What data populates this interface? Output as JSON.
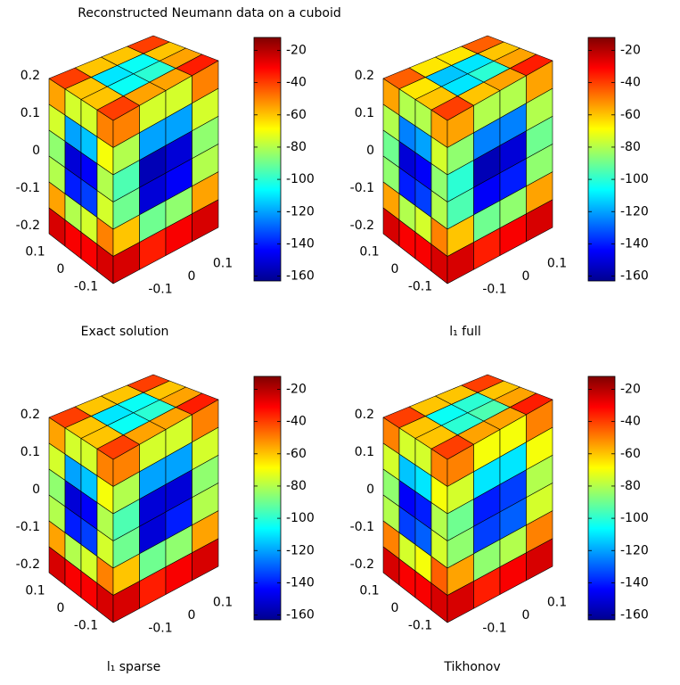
{
  "title": "Reconstructed Neumann data on a cuboid",
  "chart_data": [
    {
      "type": "surface",
      "title": "Exact solution",
      "clim": [
        -163,
        -12
      ],
      "cticks": [
        -20,
        -40,
        -60,
        -80,
        -100,
        -120,
        -140,
        -160
      ],
      "zticks": [
        0.2,
        0.1,
        0,
        -0.1,
        -0.2
      ],
      "xticks": [
        0.1,
        0,
        -0.1
      ],
      "yticks": [
        -0.1,
        0,
        0.1
      ],
      "faces": {
        "top": [
          [
            -40,
            -60,
            -60,
            -40
          ],
          [
            -60,
            -110,
            -105,
            -60
          ],
          [
            -60,
            -105,
            -100,
            -55
          ],
          [
            -40,
            -55,
            -55,
            -35
          ]
        ],
        "left": [
          [
            -55,
            -75,
            -75,
            -50
          ],
          [
            -75,
            -120,
            -115,
            -70
          ],
          [
            -85,
            -150,
            -145,
            -80
          ],
          [
            -80,
            -140,
            -135,
            -75
          ],
          [
            -55,
            -80,
            -75,
            -50
          ],
          [
            -25,
            -30,
            -30,
            -25
          ]
        ],
        "right": [
          [
            -50,
            -75,
            -75,
            -50
          ],
          [
            -80,
            -120,
            -120,
            -75
          ],
          [
            -95,
            -155,
            -150,
            -85
          ],
          [
            -90,
            -150,
            -145,
            -80
          ],
          [
            -60,
            -90,
            -85,
            -55
          ],
          [
            -25,
            -35,
            -30,
            -25
          ]
        ]
      }
    },
    {
      "type": "surface",
      "title": "l₁  full",
      "clim": [
        -163,
        -12
      ],
      "cticks": [
        -20,
        -40,
        -60,
        -80,
        -100,
        -120,
        -140,
        -160
      ],
      "zticks": [
        0.2,
        0.1,
        0,
        -0.1,
        -0.2
      ],
      "xticks": [
        0.1,
        0,
        -0.1
      ],
      "yticks": [
        -0.1,
        0,
        0.1
      ],
      "faces": {
        "top": [
          [
            -45,
            -65,
            -65,
            -45
          ],
          [
            -65,
            -115,
            -110,
            -60
          ],
          [
            -60,
            -110,
            -100,
            -55
          ],
          [
            -40,
            -60,
            -55,
            -35
          ]
        ],
        "left": [
          [
            -55,
            -80,
            -80,
            -55
          ],
          [
            -80,
            -125,
            -120,
            -75
          ],
          [
            -90,
            -150,
            -145,
            -85
          ],
          [
            -85,
            -140,
            -135,
            -80
          ],
          [
            -55,
            -80,
            -75,
            -50
          ],
          [
            -25,
            -30,
            -30,
            -25
          ]
        ],
        "right": [
          [
            -55,
            -80,
            -80,
            -55
          ],
          [
            -85,
            -125,
            -125,
            -80
          ],
          [
            -100,
            -155,
            -150,
            -90
          ],
          [
            -95,
            -145,
            -140,
            -85
          ],
          [
            -60,
            -90,
            -85,
            -55
          ],
          [
            -25,
            -35,
            -30,
            -25
          ]
        ]
      }
    },
    {
      "type": "surface",
      "title": "l₁  sparse",
      "clim": [
        -163,
        -12
      ],
      "cticks": [
        -20,
        -40,
        -60,
        -80,
        -100,
        -120,
        -140,
        -160
      ],
      "zticks": [
        0.2,
        0.1,
        0,
        -0.1,
        -0.2
      ],
      "xticks": [
        0.1,
        0,
        -0.1
      ],
      "yticks": [
        -0.1,
        0,
        0.1
      ],
      "faces": {
        "top": [
          [
            -40,
            -60,
            -60,
            -40
          ],
          [
            -60,
            -110,
            -105,
            -60
          ],
          [
            -60,
            -105,
            -100,
            -55
          ],
          [
            -40,
            -55,
            -55,
            -35
          ]
        ],
        "left": [
          [
            -55,
            -75,
            -75,
            -50
          ],
          [
            -75,
            -120,
            -115,
            -70
          ],
          [
            -85,
            -150,
            -145,
            -80
          ],
          [
            -80,
            -140,
            -135,
            -75
          ],
          [
            -55,
            -80,
            -75,
            -50
          ],
          [
            -25,
            -30,
            -30,
            -25
          ]
        ],
        "right": [
          [
            -50,
            -75,
            -75,
            -50
          ],
          [
            -80,
            -120,
            -120,
            -75
          ],
          [
            -95,
            -150,
            -150,
            -85
          ],
          [
            -90,
            -150,
            -140,
            -80
          ],
          [
            -60,
            -90,
            -85,
            -55
          ],
          [
            -25,
            -35,
            -30,
            -25
          ]
        ]
      }
    },
    {
      "type": "surface",
      "title": "Tikhonov",
      "clim": [
        -163,
        -12
      ],
      "cticks": [
        -20,
        -40,
        -60,
        -80,
        -100,
        -120,
        -140,
        -160
      ],
      "zticks": [
        0.2,
        0.1,
        0,
        -0.1,
        -0.2
      ],
      "xticks": [
        0.1,
        0,
        -0.1
      ],
      "yticks": [
        -0.1,
        0,
        0.1
      ],
      "faces": {
        "top": [
          [
            -40,
            -60,
            -60,
            -40
          ],
          [
            -60,
            -105,
            -100,
            -60
          ],
          [
            -60,
            -100,
            -95,
            -55
          ],
          [
            -40,
            -55,
            -55,
            -35
          ]
        ],
        "left": [
          [
            -50,
            -75,
            -75,
            -50
          ],
          [
            -75,
            -115,
            -110,
            -70
          ],
          [
            -85,
            -145,
            -140,
            -80
          ],
          [
            -80,
            -135,
            -130,
            -75
          ],
          [
            -50,
            -75,
            -70,
            -45
          ],
          [
            -25,
            -30,
            -30,
            -25
          ]
        ],
        "right": [
          [
            -50,
            -70,
            -70,
            -50
          ],
          [
            -75,
            -110,
            -110,
            -70
          ],
          [
            -90,
            -140,
            -135,
            -80
          ],
          [
            -85,
            -135,
            -130,
            -75
          ],
          [
            -55,
            -85,
            -80,
            -50
          ],
          [
            -25,
            -35,
            -30,
            -25
          ]
        ]
      }
    }
  ]
}
